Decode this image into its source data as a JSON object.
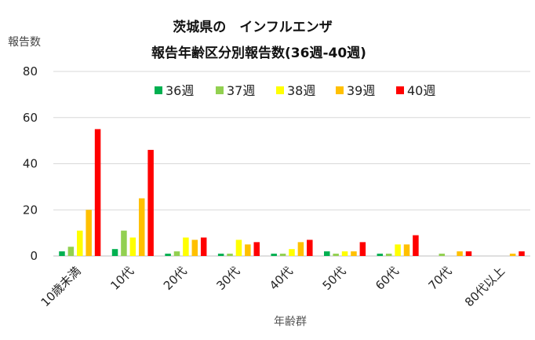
{
  "chart_data": {
    "type": "bar",
    "title": "茨城県の　インフルエンザ",
    "subtitle": "報告年齢区分別報告数(36週-40週)",
    "xlabel": "年齢群",
    "ylabel": "報告数",
    "ylim": [
      0,
      80
    ],
    "yticks": [
      0,
      20,
      40,
      60,
      80
    ],
    "grid": true,
    "legend_position": "top",
    "categories": [
      "10歳未満",
      "10代",
      "20代",
      "30代",
      "40代",
      "50代",
      "60代",
      "70代",
      "80代以上"
    ],
    "series": [
      {
        "name": "36週",
        "color": "#00B050",
        "values": [
          2,
          3,
          1,
          1,
          1,
          2,
          1,
          0,
          0
        ]
      },
      {
        "name": "37週",
        "color": "#92D050",
        "values": [
          4,
          11,
          2,
          1,
          1,
          1,
          1,
          1,
          0
        ]
      },
      {
        "name": "38週",
        "color": "#FFFF00",
        "values": [
          11,
          8,
          8,
          7,
          3,
          2,
          5,
          0,
          0
        ]
      },
      {
        "name": "39週",
        "color": "#FFC000",
        "values": [
          20,
          25,
          7,
          5,
          6,
          2,
          5,
          2,
          1
        ]
      },
      {
        "name": "40週",
        "color": "#FF0000",
        "values": [
          55,
          46,
          8,
          6,
          7,
          6,
          9,
          2,
          2
        ]
      }
    ]
  }
}
